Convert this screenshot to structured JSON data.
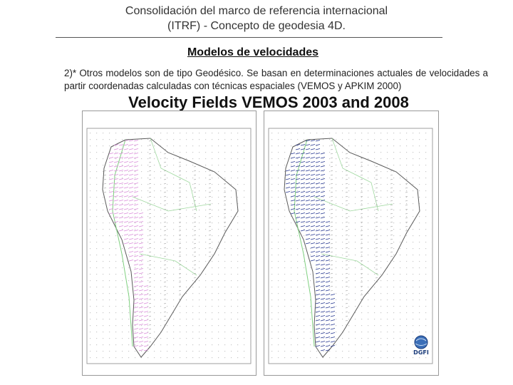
{
  "header": {
    "title_line1": "Consolidación del marco de referencia internacional",
    "title_line2": "(ITRF) - Concepto de geodesia 4D."
  },
  "section": {
    "subtitle": "Modelos de velocidades",
    "paragraph": "2)* Otros modelos son de tipo Geodésico. Se basan en determinaciones actuales de velocidades a partir coordenadas calculadas con técnicas espaciales (VEMOS y APKIM 2000)"
  },
  "figure": {
    "title": "Velocity Fields VEMOS 2003 and 2008",
    "left_map": {
      "arrow_color": "#d98ad9",
      "boundary_color": "#7fd07f"
    },
    "right_map": {
      "arrow_color": "#22338f",
      "boundary_color": "#7fd07f"
    },
    "logo_text": "DGFI"
  }
}
